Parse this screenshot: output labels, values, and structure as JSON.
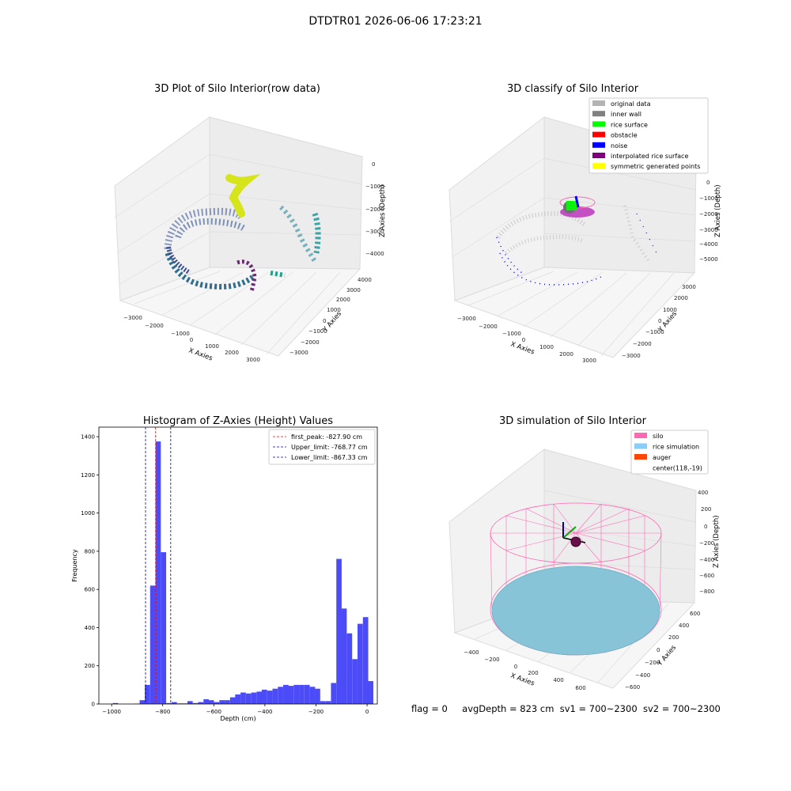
{
  "figure_title": "DTDTR01 2026-06-06 17:23:21",
  "status": {
    "flag": "flag = 0",
    "avg_depth": "avgDepth = 823 cm",
    "sv1": "sv1 = 700~2300",
    "sv2": "sv2 = 700~2300"
  },
  "colors": {
    "hist_bar": "#4b4bf7",
    "first_peak": "#ff0000",
    "limit": "#0000aa",
    "silo": "#ff69b4",
    "rice_simulation": "#87cefa",
    "auger": "#ff4500"
  },
  "chart_data": [
    {
      "type": "scatter",
      "title": "3D Plot of Silo Interior(row data)",
      "xlabel": "X Axies",
      "ylabel": "Y Axies",
      "zlabel": "Z Axies (Depth)",
      "x_ticks": [
        "−3000",
        "−2000",
        "−1000",
        "0",
        "1000",
        "2000",
        "3000"
      ],
      "y_ticks": [
        "−3000",
        "−2000",
        "−1000",
        "0",
        "1000",
        "2000",
        "3000",
        "4000"
      ],
      "z_ticks": [
        "0",
        "−1000",
        "−2000",
        "−3000",
        "−4000"
      ],
      "colormap": "viridis"
    },
    {
      "type": "scatter",
      "title": "3D classify of Silo Interior",
      "xlabel": "X Axies",
      "ylabel": "Y Axies",
      "zlabel": "Z Axies (Depth)",
      "x_ticks": [
        "−3000",
        "−2000",
        "−1000",
        "0",
        "1000",
        "2000",
        "3000"
      ],
      "y_ticks": [
        "−3000",
        "−2000",
        "−1000",
        "0",
        "1000",
        "2000",
        "3000"
      ],
      "z_ticks": [
        "0",
        "−1000",
        "−2000",
        "−3000",
        "−4000",
        "−5000"
      ],
      "legend_position": "top-right",
      "legend": [
        {
          "label": "original data",
          "color": "#b4b4b4"
        },
        {
          "label": "inner wall",
          "color": "#808080"
        },
        {
          "label": "rice surface",
          "color": "#00ff00"
        },
        {
          "label": "obstacle",
          "color": "#ff0000"
        },
        {
          "label": "noise",
          "color": "#0000ff"
        },
        {
          "label": "interpolated rice surface",
          "color": "#800080"
        },
        {
          "label": "symmetric generated points",
          "color": "#ffff00"
        }
      ]
    },
    {
      "type": "bar",
      "title": "Histogram of Z-Axies (Height) Values",
      "xlabel": "Depth (cm)",
      "ylabel": "Frequency",
      "xlim": [
        -1050,
        40
      ],
      "ylim": [
        0,
        1450
      ],
      "x_ticks": [
        {
          "value": -1000,
          "label": "−1000"
        },
        {
          "value": -800,
          "label": "−800"
        },
        {
          "value": -600,
          "label": "−600"
        },
        {
          "value": -400,
          "label": "−400"
        },
        {
          "value": -200,
          "label": "−200"
        },
        {
          "value": 0,
          "label": "0"
        }
      ],
      "y_ticks": [
        {
          "value": 0,
          "label": "0"
        },
        {
          "value": 200,
          "label": "200"
        },
        {
          "value": 400,
          "label": "400"
        },
        {
          "value": 600,
          "label": "600"
        },
        {
          "value": 800,
          "label": "800"
        },
        {
          "value": 1000,
          "label": "1000"
        },
        {
          "value": 1200,
          "label": "1200"
        },
        {
          "value": 1400,
          "label": "1400"
        }
      ],
      "bin_width": 20.8,
      "bins": [
        {
          "x": -985,
          "v": 5
        },
        {
          "x": -964,
          "v": 0
        },
        {
          "x": -943,
          "v": 0
        },
        {
          "x": -922,
          "v": 0
        },
        {
          "x": -901,
          "v": 2
        },
        {
          "x": -880,
          "v": 20
        },
        {
          "x": -860,
          "v": 100
        },
        {
          "x": -839,
          "v": 620
        },
        {
          "x": -818,
          "v": 1375
        },
        {
          "x": -797,
          "v": 795
        },
        {
          "x": -776,
          "v": 5
        },
        {
          "x": -755,
          "v": 10
        },
        {
          "x": -734,
          "v": 3
        },
        {
          "x": -714,
          "v": 3
        },
        {
          "x": -693,
          "v": 15
        },
        {
          "x": -672,
          "v": 5
        },
        {
          "x": -651,
          "v": 10
        },
        {
          "x": -630,
          "v": 25
        },
        {
          "x": -610,
          "v": 20
        },
        {
          "x": -589,
          "v": 10
        },
        {
          "x": -568,
          "v": 20
        },
        {
          "x": -547,
          "v": 20
        },
        {
          "x": -526,
          "v": 35
        },
        {
          "x": -506,
          "v": 50
        },
        {
          "x": -485,
          "v": 60
        },
        {
          "x": -464,
          "v": 55
        },
        {
          "x": -443,
          "v": 60
        },
        {
          "x": -422,
          "v": 65
        },
        {
          "x": -402,
          "v": 75
        },
        {
          "x": -381,
          "v": 70
        },
        {
          "x": -360,
          "v": 80
        },
        {
          "x": -339,
          "v": 90
        },
        {
          "x": -318,
          "v": 100
        },
        {
          "x": -298,
          "v": 95
        },
        {
          "x": -277,
          "v": 100
        },
        {
          "x": -256,
          "v": 100
        },
        {
          "x": -235,
          "v": 100
        },
        {
          "x": -214,
          "v": 90
        },
        {
          "x": -194,
          "v": 80
        },
        {
          "x": -173,
          "v": 15
        },
        {
          "x": -152,
          "v": 15
        },
        {
          "x": -131,
          "v": 110
        },
        {
          "x": -110,
          "v": 760
        },
        {
          "x": -90,
          "v": 500
        },
        {
          "x": -69,
          "v": 370
        },
        {
          "x": -48,
          "v": 235
        },
        {
          "x": -27,
          "v": 420
        },
        {
          "x": -6,
          "v": 455
        },
        {
          "x": 14,
          "v": 120
        }
      ],
      "lines": [
        {
          "label": "first_peak: -827.90 cm",
          "value": -827.9,
          "color": "#ff0000"
        },
        {
          "label": "Upper_limit: -768.77 cm",
          "value": -768.77,
          "color": "#0000aa"
        },
        {
          "label": "Lower_limit: -867.33 cm",
          "value": -867.33,
          "color": "#0000aa"
        }
      ],
      "legend_position": "top-right"
    },
    {
      "type": "scatter",
      "title": "3D simulation of Silo Interior",
      "xlabel": "X Axies",
      "ylabel": "Y Axies",
      "zlabel": "Z Axies (Depth)",
      "x_ticks": [
        "−400",
        "−200",
        "0",
        "200",
        "400",
        "600"
      ],
      "y_ticks": [
        "−600",
        "−400",
        "−200",
        "0",
        "200",
        "400",
        "600"
      ],
      "z_ticks": [
        "400",
        "200",
        "0",
        "−200",
        "−400",
        "−600",
        "−800"
      ],
      "legend_position": "top-right",
      "legend": [
        {
          "label": "silo",
          "color": "#ff69b4"
        },
        {
          "label": "rice simulation",
          "color": "#87cefa"
        },
        {
          "label": "auger",
          "color": "#ff4500"
        },
        {
          "label": "center(118,-19)",
          "color": ""
        }
      ]
    }
  ]
}
